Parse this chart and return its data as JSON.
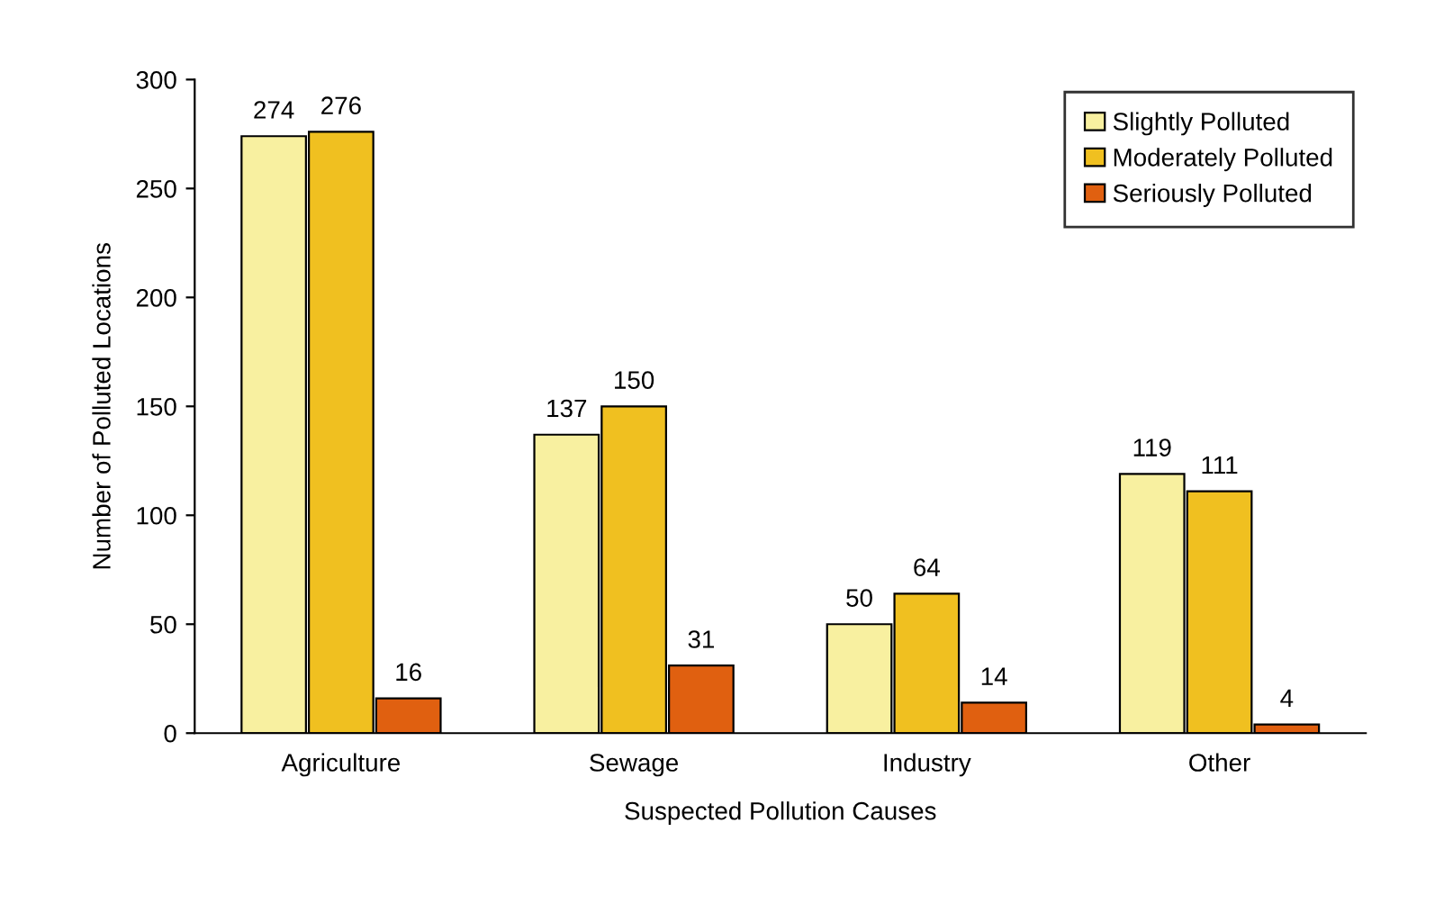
{
  "chart_data": {
    "type": "bar",
    "xlabel": "Suspected Pollution Causes",
    "ylabel": "Number of Polluted Locations",
    "categories": [
      "Agriculture",
      "Sewage",
      "Industry",
      "Other"
    ],
    "series": [
      {
        "name": "Slightly Polluted",
        "color": "#f8f0a0",
        "values": [
          274,
          137,
          50,
          119
        ]
      },
      {
        "name": "Moderately Polluted",
        "color": "#f0c020",
        "values": [
          276,
          150,
          64,
          111
        ]
      },
      {
        "name": "Seriously Polluted",
        "color": "#e06010",
        "values": [
          16,
          31,
          14,
          4
        ]
      }
    ],
    "ylim": [
      0,
      300
    ],
    "yticks": [
      0,
      50,
      100,
      150,
      200,
      250,
      300
    ],
    "grid": false,
    "legend": "top right",
    "data_labels": true
  }
}
